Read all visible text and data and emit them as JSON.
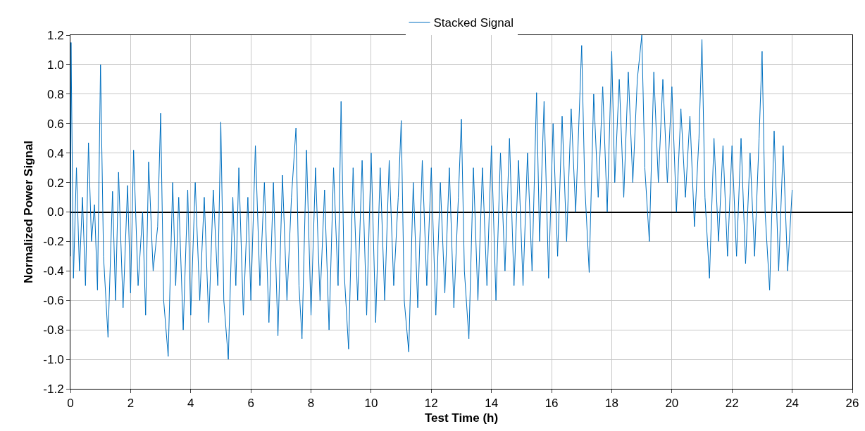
{
  "chart_data": {
    "type": "line",
    "xlabel": "Test Time (h)",
    "ylabel": "Normalized Power Signal",
    "x": [
      0,
      0.02,
      0.1,
      0.2,
      0.3,
      0.4,
      0.5,
      0.6,
      0.7,
      0.8,
      0.9,
      1.0,
      1.1,
      1.25,
      1.4,
      1.5,
      1.6,
      1.75,
      1.9,
      2.0,
      2.1,
      2.25,
      2.4,
      2.5,
      2.6,
      2.75,
      2.9,
      3.0,
      3.1,
      3.25,
      3.4,
      3.5,
      3.6,
      3.75,
      3.9,
      4.0,
      4.15,
      4.3,
      4.45,
      4.6,
      4.75,
      4.9,
      5.0,
      5.1,
      5.25,
      5.4,
      5.5,
      5.6,
      5.75,
      5.9,
      6.0,
      6.15,
      6.3,
      6.45,
      6.6,
      6.75,
      6.9,
      7.05,
      7.2,
      7.35,
      7.5,
      7.6,
      7.7,
      7.85,
      8.0,
      8.15,
      8.3,
      8.45,
      8.6,
      8.75,
      8.9,
      9.0,
      9.1,
      9.25,
      9.4,
      9.55,
      9.7,
      9.85,
      10.0,
      10.15,
      10.3,
      10.45,
      10.6,
      10.75,
      10.9,
      11.0,
      11.1,
      11.25,
      11.4,
      11.55,
      11.7,
      11.85,
      12.0,
      12.15,
      12.3,
      12.45,
      12.6,
      12.75,
      12.9,
      13.0,
      13.1,
      13.25,
      13.4,
      13.55,
      13.7,
      13.85,
      14.0,
      14.15,
      14.3,
      14.45,
      14.6,
      14.75,
      14.9,
      15.05,
      15.2,
      15.35,
      15.5,
      15.6,
      15.75,
      15.9,
      16.05,
      16.2,
      16.35,
      16.5,
      16.65,
      16.8,
      17.0,
      17.1,
      17.25,
      17.4,
      17.55,
      17.7,
      17.85,
      18.0,
      18.1,
      18.25,
      18.4,
      18.55,
      18.7,
      18.85,
      19.0,
      19.1,
      19.25,
      19.4,
      19.55,
      19.7,
      19.85,
      20.0,
      20.15,
      20.3,
      20.45,
      20.6,
      20.75,
      20.9,
      21.0,
      21.1,
      21.25,
      21.4,
      21.55,
      21.7,
      21.85,
      22.0,
      22.15,
      22.3,
      22.45,
      22.6,
      22.75,
      22.9,
      23.0,
      23.1,
      23.25,
      23.4,
      23.55,
      23.7,
      23.85,
      24.0
    ],
    "series": [
      {
        "name": "Stacked Signal",
        "color": "#0070c0",
        "values": [
          -0.3,
          1.15,
          -0.45,
          0.3,
          -0.4,
          0.1,
          -0.5,
          0.47,
          -0.2,
          0.05,
          -0.53,
          1.0,
          -0.3,
          -0.85,
          0.14,
          -0.6,
          0.27,
          -0.65,
          0.18,
          -0.55,
          0.42,
          -0.5,
          0.0,
          -0.7,
          0.34,
          -0.4,
          -0.1,
          0.67,
          -0.6,
          -0.98,
          0.2,
          -0.5,
          0.1,
          -0.8,
          0.15,
          -0.7,
          0.2,
          -0.6,
          0.1,
          -0.75,
          0.15,
          -0.5,
          0.61,
          -0.6,
          -1.0,
          0.1,
          -0.5,
          0.3,
          -0.7,
          0.1,
          -0.6,
          0.45,
          -0.5,
          0.2,
          -0.75,
          0.2,
          -0.84,
          0.25,
          -0.6,
          0.1,
          0.57,
          -0.5,
          -0.86,
          0.42,
          -0.7,
          0.3,
          -0.6,
          0.15,
          -0.8,
          0.3,
          -0.5,
          0.75,
          -0.4,
          -0.93,
          0.3,
          -0.6,
          0.35,
          -0.7,
          0.4,
          -0.75,
          0.3,
          -0.6,
          0.35,
          -0.5,
          0.1,
          0.62,
          -0.6,
          -0.95,
          0.2,
          -0.65,
          0.35,
          -0.5,
          0.3,
          -0.7,
          0.2,
          -0.55,
          0.3,
          -0.65,
          0.1,
          0.63,
          -0.4,
          -0.86,
          0.3,
          -0.6,
          0.3,
          -0.5,
          0.45,
          -0.6,
          0.4,
          -0.4,
          0.5,
          -0.5,
          0.35,
          -0.5,
          0.4,
          -0.4,
          0.81,
          -0.2,
          0.75,
          -0.45,
          0.6,
          -0.3,
          0.65,
          -0.2,
          0.7,
          0.0,
          1.13,
          0.2,
          -0.41,
          0.8,
          0.1,
          0.85,
          0.0,
          1.09,
          0.2,
          0.9,
          0.1,
          0.95,
          0.2,
          0.9,
          1.2,
          0.3,
          -0.2,
          0.95,
          0.2,
          0.9,
          0.2,
          0.85,
          0.0,
          0.7,
          0.1,
          0.65,
          -0.1,
          0.5,
          1.17,
          0.1,
          -0.45,
          0.5,
          -0.2,
          0.45,
          -0.3,
          0.45,
          -0.3,
          0.5,
          -0.35,
          0.4,
          -0.3,
          0.5,
          1.09,
          0.0,
          -0.53,
          0.55,
          -0.4,
          0.45,
          -0.4,
          0.15
        ]
      }
    ],
    "xlim": [
      0,
      26
    ],
    "xticks": [
      0,
      2,
      4,
      6,
      8,
      10,
      12,
      14,
      16,
      18,
      20,
      22,
      24,
      26
    ],
    "ylim": [
      -1.2,
      1.2
    ],
    "yticks": [
      {
        "value": -1.2,
        "label": "-1.2"
      },
      {
        "value": -1,
        "label": "-1.0"
      },
      {
        "value": -0.8,
        "label": "-0.8"
      },
      {
        "value": -0.6,
        "label": "-0.6"
      },
      {
        "value": -0.4,
        "label": "-0.4"
      },
      {
        "value": -0.2,
        "label": "-0.2"
      },
      {
        "value": 0,
        "label": "0.0"
      },
      {
        "value": 0.2,
        "label": "0.2"
      },
      {
        "value": 0.4,
        "label": "0.4"
      },
      {
        "value": 0.6,
        "label": "0.6"
      },
      {
        "value": 0.8,
        "label": "0.8"
      },
      {
        "value": 1,
        "label": "1.0"
      },
      {
        "value": 1.2,
        "label": "1.2"
      }
    ],
    "grid": true,
    "legend": "top",
    "marker": "none",
    "line_style": "solid"
  }
}
